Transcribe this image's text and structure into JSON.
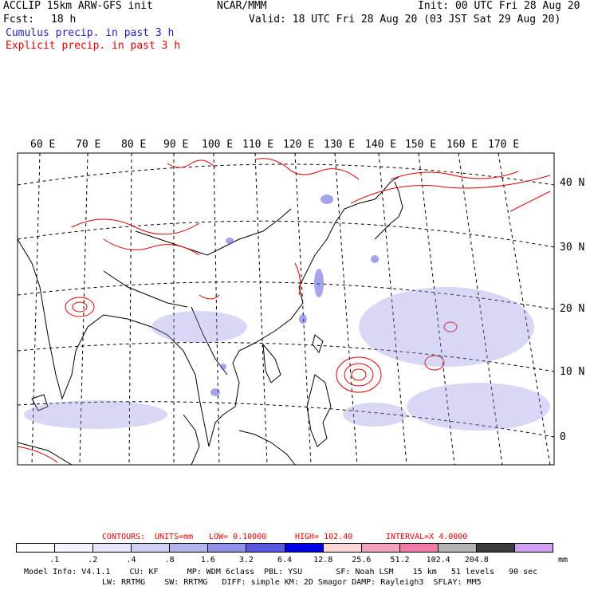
{
  "header": {
    "title_left": "ACCLIP 15km ARW-GFS init",
    "center": "NCAR/MMM",
    "init": "Init: 00 UTC Fri 28 Aug 20",
    "fcst_label": "Fcst:",
    "fcst_value": "18 h",
    "valid": "Valid: 18 UTC Fri 28 Aug 20 (03 JST Sat 29 Aug 20)",
    "cumulus_label": "Cumulus precip. in past 3 h",
    "explicit_label": "Explicit precip. in past 3 h"
  },
  "colors": {
    "cumulus": "#1f1fbf",
    "explicit": "#e00000",
    "coast": "#000000",
    "grid": "#000000"
  },
  "map": {
    "lon_labels": [
      "60 E",
      "70 E",
      "80 E",
      "90 E",
      "100 E",
      "110 E",
      "120 E",
      "130 E",
      "140 E",
      "150 E",
      "160 E",
      "170 E"
    ],
    "lat_labels": [
      "40 N",
      "30 N",
      "20 N",
      "10 N",
      "0"
    ]
  },
  "contours": {
    "label": "CONTOURS:",
    "units": "UNITS=mm",
    "low": "LOW= 0.10000",
    "high": "HIGH= 102.40",
    "interval": "INTERVAL=X 4.0000"
  },
  "legend": {
    "ticks": [
      ".1",
      ".2",
      ".4",
      ".8",
      "1.6",
      "3.2",
      "6.4",
      "12.8",
      "25.6",
      "51.2",
      "102.4",
      "204.8"
    ],
    "unit": "mm",
    "colors": [
      "#ffffff",
      "#f4f4ff",
      "#e6e6fa",
      "#d0d0f4",
      "#b4b4ee",
      "#9090e6",
      "#5a5ae0",
      "#0000e6",
      "#fbd6d6",
      "#f2a2bc",
      "#f07aa8",
      "#b4b4b4",
      "#3c3c3c",
      "#d29ef0"
    ]
  },
  "model_info": {
    "line1": "Model Info: V4.1.1    CU: KF      MP: WDM 6class  PBL: YSU       SF: Noah LSM    15 km   51 levels   90 sec",
    "line2": "LW: RRTMG    SW: RRTMG   DIFF: simple KM: 2D Smagor DAMP: Rayleigh3  SFLAY: MM5"
  }
}
